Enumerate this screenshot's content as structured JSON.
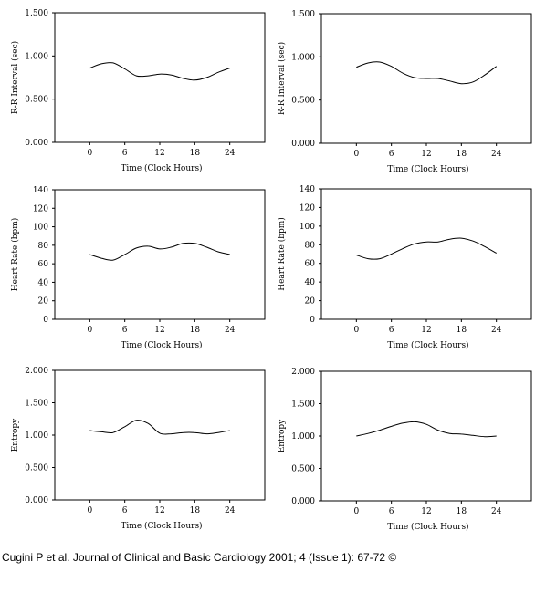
{
  "chart_data": [
    {
      "type": "line",
      "xlabel": "Time (Clock Hours)",
      "ylabel": "R-R Interval (sec)",
      "xticks": [
        "0",
        "6",
        "12",
        "18",
        "24"
      ],
      "yticks": [
        "0.000",
        "0.500",
        "1.000",
        "1.500"
      ],
      "xlim": [
        -6,
        30
      ],
      "ylim": [
        0,
        1.5
      ],
      "series": [
        {
          "x": [
            0,
            2,
            4,
            6,
            8,
            10,
            12,
            14,
            16,
            18,
            20,
            22,
            24
          ],
          "y": [
            0.86,
            0.91,
            0.92,
            0.85,
            0.77,
            0.77,
            0.79,
            0.78,
            0.74,
            0.72,
            0.75,
            0.81,
            0.86
          ]
        }
      ]
    },
    {
      "type": "line",
      "xlabel": "Time (Clock Hours)",
      "ylabel": "R-R Interval (sec)",
      "xticks": [
        "0",
        "6",
        "12",
        "18",
        "24"
      ],
      "yticks": [
        "0.000",
        "0.500",
        "1.000",
        "1.500"
      ],
      "xlim": [
        -6,
        30
      ],
      "ylim": [
        0,
        1.5
      ],
      "series": [
        {
          "x": [
            0,
            2,
            4,
            6,
            8,
            10,
            12,
            14,
            16,
            18,
            20,
            22,
            24
          ],
          "y": [
            0.88,
            0.93,
            0.94,
            0.89,
            0.81,
            0.76,
            0.75,
            0.75,
            0.72,
            0.69,
            0.71,
            0.79,
            0.89
          ]
        }
      ]
    },
    {
      "type": "line",
      "xlabel": "Time (Clock Hours)",
      "ylabel": "Heart Rate (bpm)",
      "xticks": [
        "0",
        "6",
        "12",
        "18",
        "24"
      ],
      "yticks": [
        "0",
        "20",
        "40",
        "60",
        "80",
        "100",
        "120",
        "140"
      ],
      "xlim": [
        -6,
        30
      ],
      "ylim": [
        0,
        140
      ],
      "series": [
        {
          "x": [
            0,
            2,
            4,
            6,
            8,
            10,
            12,
            14,
            16,
            18,
            20,
            22,
            24
          ],
          "y": [
            70,
            66,
            64,
            70,
            77,
            79,
            76,
            78,
            82,
            82,
            78,
            73,
            70
          ]
        }
      ]
    },
    {
      "type": "line",
      "xlabel": "Time (Clock Hours)",
      "ylabel": "Heart Rate (bpm)",
      "xticks": [
        "0",
        "6",
        "12",
        "18",
        "24"
      ],
      "yticks": [
        "0",
        "20",
        "40",
        "60",
        "80",
        "100",
        "120",
        "140"
      ],
      "xlim": [
        -6,
        30
      ],
      "ylim": [
        0,
        140
      ],
      "series": [
        {
          "x": [
            0,
            2,
            4,
            6,
            8,
            10,
            12,
            14,
            16,
            18,
            20,
            22,
            24
          ],
          "y": [
            69,
            65,
            65,
            70,
            76,
            81,
            83,
            83,
            86,
            87,
            84,
            78,
            71
          ]
        }
      ]
    },
    {
      "type": "line",
      "xlabel": "Time (Clock Hours)",
      "ylabel": "Entropy",
      "xticks": [
        "0",
        "6",
        "12",
        "18",
        "24"
      ],
      "yticks": [
        "0.000",
        "0.500",
        "1.000",
        "1.500",
        "2.000"
      ],
      "xlim": [
        -6,
        30
      ],
      "ylim": [
        0,
        2
      ],
      "series": [
        {
          "x": [
            0,
            2,
            4,
            6,
            8,
            10,
            12,
            14,
            16,
            18,
            20,
            22,
            24
          ],
          "y": [
            1.07,
            1.05,
            1.04,
            1.13,
            1.23,
            1.18,
            1.03,
            1.02,
            1.04,
            1.04,
            1.02,
            1.04,
            1.07
          ]
        }
      ]
    },
    {
      "type": "line",
      "xlabel": "Time (Clock Hours)",
      "ylabel": "Entropy",
      "xticks": [
        "0",
        "6",
        "12",
        "18",
        "24"
      ],
      "yticks": [
        "0.000",
        "0.500",
        "1.000",
        "1.500",
        "2.000"
      ],
      "xlim": [
        -6,
        30
      ],
      "ylim": [
        0,
        2
      ],
      "series": [
        {
          "x": [
            0,
            2,
            4,
            6,
            8,
            10,
            12,
            14,
            16,
            18,
            20,
            22,
            24
          ],
          "y": [
            1.0,
            1.04,
            1.09,
            1.15,
            1.2,
            1.22,
            1.18,
            1.09,
            1.04,
            1.03,
            1.01,
            0.99,
            1.0
          ]
        }
      ]
    }
  ],
  "citation": "Cugini P et al. Journal of Clinical and Basic Cardiology 2001; 4 (Issue 1): 67-72 ©"
}
